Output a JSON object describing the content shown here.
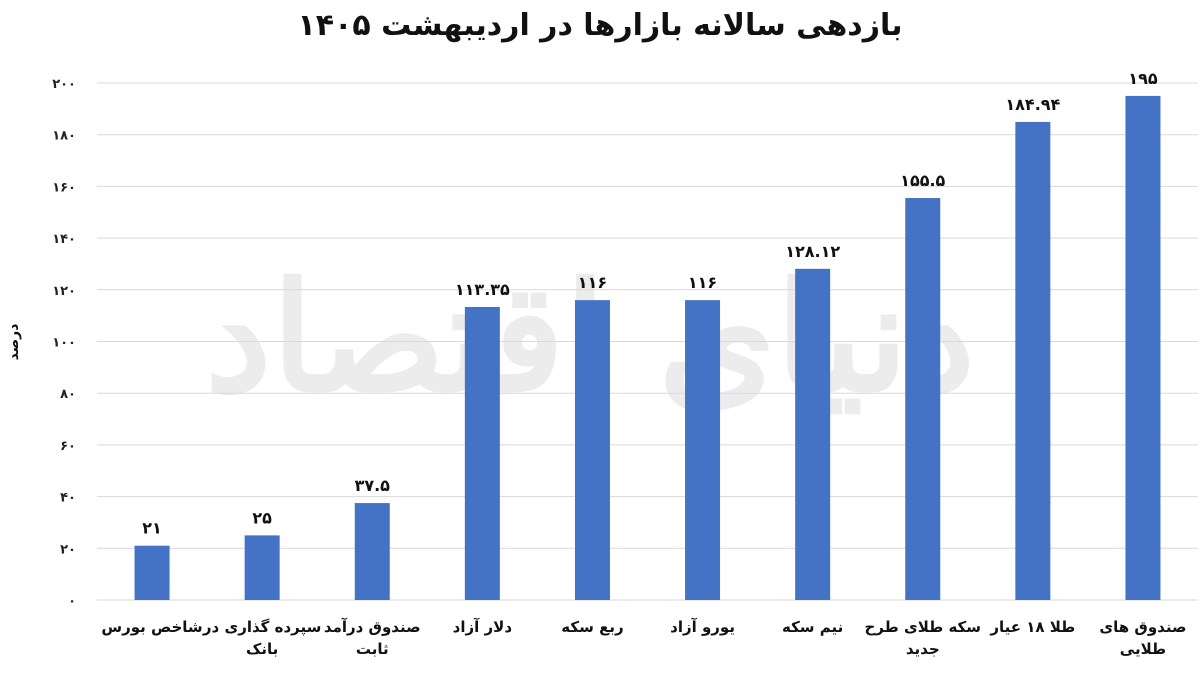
{
  "chart_data": {
    "type": "bar",
    "title": "بازدهی سالانه بازارها در اردیبهشت ۱۴۰۵",
    "ylabel": "درصد",
    "xlabel": "",
    "ylim": [
      0,
      200
    ],
    "yticks": [
      0,
      20,
      40,
      60,
      80,
      100,
      120,
      140,
      160,
      180,
      200
    ],
    "ytick_labels": [
      "۰",
      "۲۰",
      "۴۰",
      "۶۰",
      "۸۰",
      "۱۰۰",
      "۱۲۰",
      "۱۴۰",
      "۱۶۰",
      "۱۸۰",
      "۲۰۰"
    ],
    "grid": true,
    "legend": "none",
    "bar_color": "#4472c4",
    "categories": [
      [
        "شاخص بورس"
      ],
      [
        "سپرده گذاری در",
        "بانک"
      ],
      [
        "صندوق درآمد",
        "ثابت"
      ],
      [
        "دلار آزاد"
      ],
      [
        "ربع سکه"
      ],
      [
        "یورو آزاد"
      ],
      [
        "نیم سکه"
      ],
      [
        "سکه طلای طرح",
        "جدید"
      ],
      [
        "طلا ۱۸ عیار"
      ],
      [
        "صندوق های",
        "طلایی"
      ]
    ],
    "values": [
      21,
      25,
      37.5,
      113.35,
      116,
      116,
      128.12,
      155.5,
      184.94,
      195
    ],
    "value_labels": [
      "۲۱",
      "۲۵",
      "۳۷.۵",
      "۱۱۳.۳۵",
      "۱۱۶",
      "۱۱۶",
      "۱۲۸.۱۲",
      "۱۵۵.۵",
      "۱۸۴.۹۴",
      "۱۹۵"
    ]
  },
  "watermark": "دنیای اقتصاد"
}
